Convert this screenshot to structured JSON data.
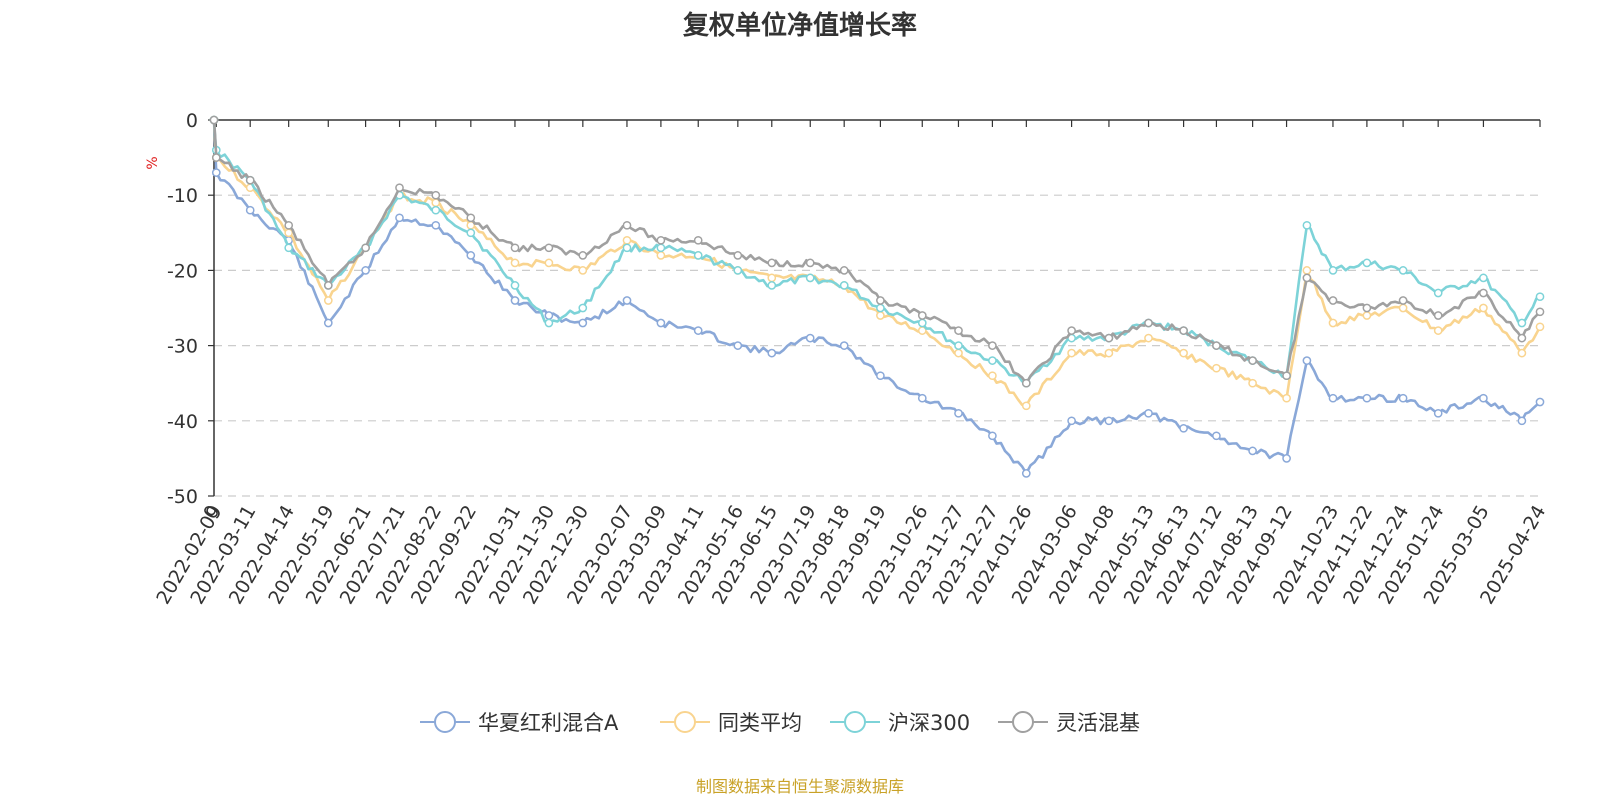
{
  "chart_data": {
    "type": "line",
    "title": "复权单位净值增长率",
    "ylabel": "%",
    "ylim": [
      -50,
      0
    ],
    "yticks": [
      0,
      -10,
      -20,
      -30,
      -40,
      -50
    ],
    "x_start_label": "0",
    "x_tick_labels": [
      "2022-02-09",
      "2022-03-11",
      "2022-04-14",
      "2022-05-19",
      "2022-06-21",
      "2022-07-21",
      "2022-08-22",
      "2022-09-22",
      "2022-10-31",
      "2022-11-30",
      "2022-12-30",
      "2023-02-07",
      "2023-03-09",
      "2023-04-11",
      "2023-05-16",
      "2023-06-15",
      "2023-07-19",
      "2023-08-18",
      "2023-09-19",
      "2023-10-26",
      "2023-11-27",
      "2023-12-27",
      "2024-01-26",
      "2024-03-06",
      "2024-04-08",
      "2024-05-13",
      "2024-06-13",
      "2024-07-12",
      "2024-08-13",
      "2024-09-12",
      "2024-10-23",
      "2024-11-22",
      "2024-12-24",
      "2025-01-24",
      "2025-03-05",
      "2025-04-24"
    ],
    "grid": "horizontal-dashed",
    "legend_position": "bottom",
    "x": [
      "0",
      "2022-02-09",
      "2022-03-11",
      "2022-04-14",
      "2022-05-19",
      "2022-06-21",
      "2022-07-21",
      "2022-08-22",
      "2022-09-22",
      "2022-10-31",
      "2022-11-30",
      "2022-12-30",
      "2023-02-07",
      "2023-03-09",
      "2023-04-11",
      "2023-05-16",
      "2023-06-15",
      "2023-07-19",
      "2023-08-18",
      "2023-09-19",
      "2023-10-26",
      "2023-11-27",
      "2023-12-27",
      "2024-01-26",
      "2024-03-06",
      "2024-04-08",
      "2024-05-13",
      "2024-06-13",
      "2024-07-12",
      "2024-08-13",
      "2024-09-12",
      "2024-09-30",
      "2024-10-23",
      "2024-11-22",
      "2024-12-24",
      "2025-01-24",
      "2025-03-05",
      "2025-04-08",
      "2025-04-24"
    ],
    "series": [
      {
        "name": "华夏红利混合A",
        "color": "#8aa8d8",
        "values": [
          0,
          -7,
          -12,
          -16,
          -27,
          -20,
          -13,
          -14,
          -18,
          -24,
          -26,
          -27,
          -24,
          -27,
          -28,
          -30,
          -31,
          -29,
          -30,
          -34,
          -37,
          -39,
          -42,
          -47,
          -40,
          -40,
          -39,
          -41,
          -42,
          -44,
          -45,
          -32,
          -37,
          -37,
          -37,
          -39,
          -37,
          -40,
          -37.5
        ]
      },
      {
        "name": "同类平均",
        "color": "#f9d48f",
        "values": [
          0,
          -5,
          -9,
          -15,
          -24,
          -17,
          -10,
          -11,
          -14,
          -19,
          -19,
          -20,
          -16,
          -18,
          -18,
          -20,
          -21,
          -21,
          -22,
          -26,
          -28,
          -31,
          -34,
          -38,
          -31,
          -31,
          -29,
          -31,
          -33,
          -35,
          -37,
          -20,
          -27,
          -26,
          -25,
          -28,
          -25,
          -31,
          -27.5
        ]
      },
      {
        "name": "沪深300",
        "color": "#7dd3d8",
        "values": [
          0,
          -4,
          -8,
          -17,
          -22,
          -17,
          -10,
          -12,
          -15,
          -22,
          -27,
          -25,
          -17,
          -17,
          -18,
          -20,
          -22,
          -21,
          -22,
          -25,
          -27,
          -30,
          -32,
          -35,
          -29,
          -29,
          -27,
          -28,
          -30,
          -32,
          -34,
          -14,
          -20,
          -19,
          -20,
          -23,
          -21,
          -27,
          -23.5
        ]
      },
      {
        "name": "灵活混基",
        "color": "#a0a0a0",
        "values": [
          0,
          -5,
          -8,
          -14,
          -22,
          -17,
          -9,
          -10,
          -13,
          -17,
          -17,
          -18,
          -14,
          -16,
          -16,
          -18,
          -19,
          -19,
          -20,
          -24,
          -26,
          -28,
          -30,
          -35,
          -28,
          -29,
          -27,
          -28,
          -30,
          -32,
          -34,
          -21,
          -24,
          -25,
          -24,
          -26,
          -23,
          -29,
          -25.5
        ]
      }
    ]
  },
  "source": "制图数据来自恒生聚源数据库"
}
